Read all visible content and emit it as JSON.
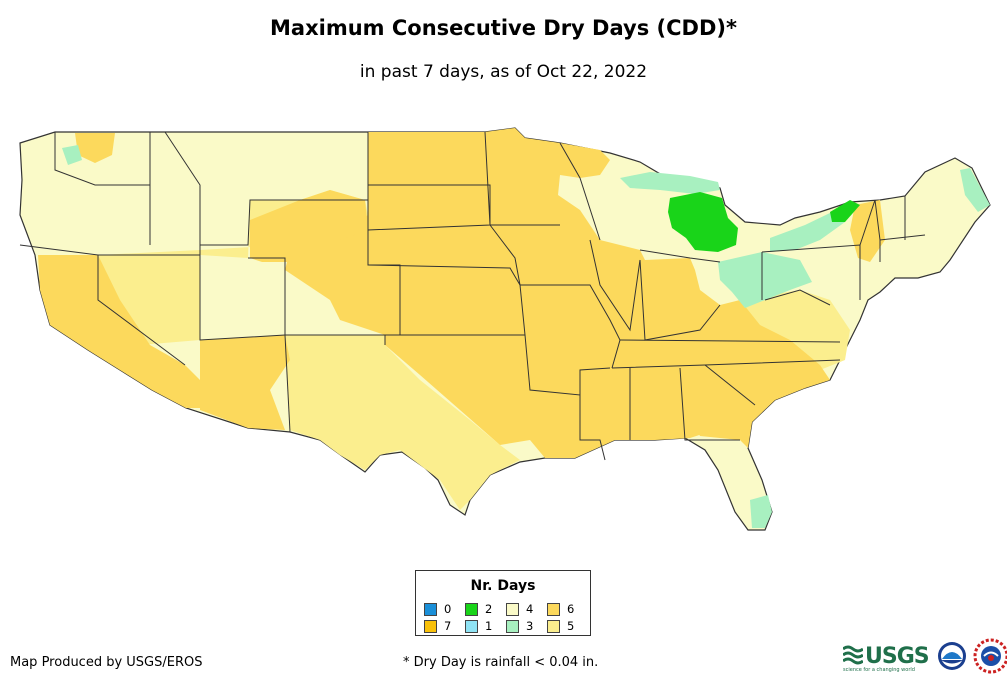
{
  "title": "Maximum Consecutive Dry Days (CDD)*",
  "subtitle": "in past 7 days, as of Oct 22, 2022",
  "legend": {
    "title": "Nr. Days",
    "items": [
      {
        "label": "0",
        "color": "#1a8fd8"
      },
      {
        "label": "2",
        "color": "#19d419"
      },
      {
        "label": "4",
        "color": "#fafac8"
      },
      {
        "label": "6",
        "color": "#fcd95c"
      },
      {
        "label": "7",
        "color": "#f9c10a"
      },
      {
        "label": "1",
        "color": "#8fe3f4"
      },
      {
        "label": "3",
        "color": "#a8f0c0"
      },
      {
        "label": "5",
        "color": "#fbee8e"
      }
    ]
  },
  "footer": {
    "credit": "Map Produced by USGS/EROS",
    "note": "* Dry Day is rainfall < 0.04 in."
  },
  "logos": {
    "usgs": "USGS",
    "usgs_tagline": "science for a changing world"
  }
}
